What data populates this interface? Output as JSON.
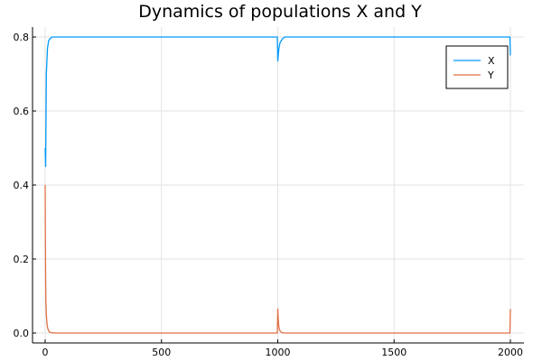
{
  "chart_data": {
    "type": "line",
    "title": "Dynamics of populations X and Y",
    "xlabel": "",
    "ylabel": "",
    "xlim": [
      0,
      2000
    ],
    "ylim": [
      0.0,
      0.8
    ],
    "xticks": [
      0,
      500,
      1000,
      1500,
      2000
    ],
    "xtick_labels": [
      "0",
      "500",
      "1000",
      "1500",
      "2000"
    ],
    "yticks": [
      0.0,
      0.2,
      0.4,
      0.6,
      0.8
    ],
    "ytick_labels": [
      "0.0",
      "0.2",
      "0.4",
      "0.6",
      "0.8"
    ],
    "grid": true,
    "legend": "top-right",
    "series": [
      {
        "name": "X",
        "color": "#009af9",
        "x": [
          0,
          2,
          5,
          10,
          15,
          20,
          30,
          50,
          100,
          500,
          998,
          1000,
          1002,
          1005,
          1010,
          1015,
          1020,
          1030,
          1500,
          1998,
          2000
        ],
        "y": [
          0.5,
          0.45,
          0.7,
          0.77,
          0.79,
          0.795,
          0.8,
          0.8,
          0.8,
          0.8,
          0.8,
          0.735,
          0.75,
          0.77,
          0.785,
          0.79,
          0.795,
          0.8,
          0.8,
          0.8,
          0.75
        ]
      },
      {
        "name": "Y",
        "color": "#e26f46",
        "x": [
          0,
          1,
          2,
          3,
          5,
          8,
          10,
          15,
          20,
          30,
          50,
          100,
          500,
          998,
          1000,
          1002,
          1004,
          1006,
          1010,
          1015,
          1020,
          1030,
          1500,
          1998,
          2000
        ],
        "y": [
          0.4,
          0.25,
          0.15,
          0.09,
          0.05,
          0.025,
          0.015,
          0.006,
          0.002,
          0.0005,
          0.0,
          0.0,
          0.0,
          0.0,
          0.065,
          0.04,
          0.02,
          0.012,
          0.005,
          0.002,
          0.001,
          0.0,
          0.0,
          0.0,
          0.065
        ]
      }
    ]
  }
}
